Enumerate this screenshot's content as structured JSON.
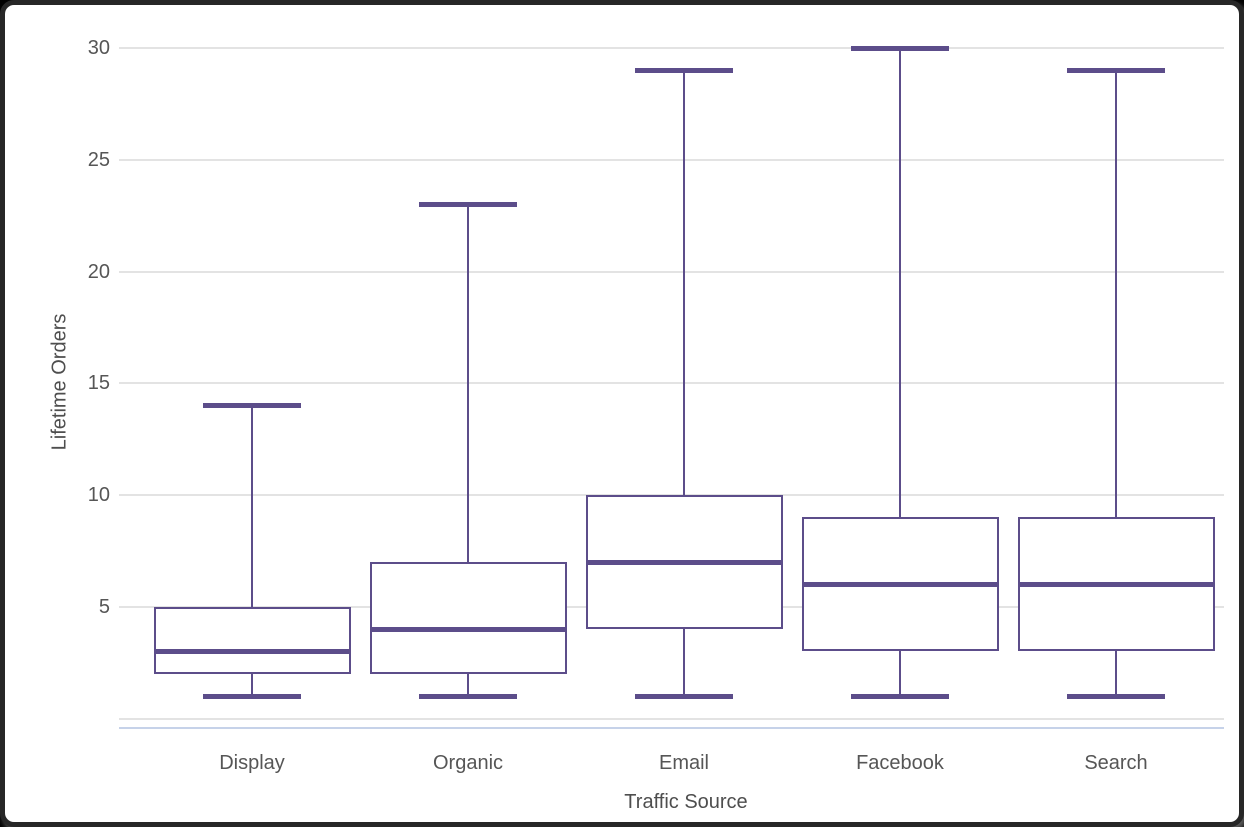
{
  "chart_data": {
    "type": "box",
    "title": "",
    "xlabel": "Traffic Source",
    "ylabel": "Lifetime Orders",
    "categories": [
      "Display",
      "Organic",
      "Email",
      "Facebook",
      "Search"
    ],
    "boxes": [
      {
        "category": "Display",
        "min": 1,
        "q1": 2,
        "median": 3,
        "q3": 5,
        "max": 14
      },
      {
        "category": "Organic",
        "min": 1,
        "q1": 2,
        "median": 4,
        "q3": 7,
        "max": 23
      },
      {
        "category": "Email",
        "min": 1,
        "q1": 4,
        "median": 7,
        "q3": 10,
        "max": 29
      },
      {
        "category": "Facebook",
        "min": 1,
        "q1": 3,
        "median": 6,
        "q3": 9,
        "max": 30
      },
      {
        "category": "Search",
        "min": 1,
        "q1": 3,
        "median": 6,
        "q3": 9,
        "max": 29
      }
    ],
    "yticks": [
      "5",
      "10",
      "15",
      "20",
      "25",
      "30"
    ],
    "ytick_values": [
      5,
      10,
      15,
      20,
      25,
      30
    ],
    "gridline_values": [
      0,
      5,
      10,
      15,
      20,
      25,
      30
    ],
    "ylim": [
      0,
      31
    ],
    "grid": true,
    "legend": "none",
    "colors": {
      "box": "#5c4d8a",
      "grid": "#e3e3e3",
      "axis_line": "#c6d2e9",
      "tick_text": "#565656",
      "title_text": "#4e4e4e"
    }
  }
}
